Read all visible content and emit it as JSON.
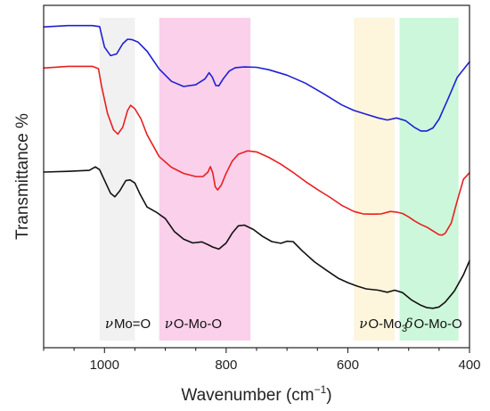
{
  "chart_data": {
    "type": "line",
    "xlabel": "Wavenumber (cm",
    "xlabel_sup": "−1",
    "xlabel_end": ")",
    "ylabel": "Transmittance %",
    "xlim": [
      1100,
      400
    ],
    "x_reversed": true,
    "ylim": [
      0,
      1
    ],
    "y_ticks_shown": false,
    "x_ticks": [
      1000,
      800,
      600,
      400
    ],
    "x_tick_labels": [
      "1000",
      "800",
      "600",
      "400"
    ],
    "bands": [
      {
        "from": 1008,
        "to": 950,
        "color": "#eeeeee",
        "label_symbol": "ν",
        "label_text": "Mo=O",
        "label_sub": ""
      },
      {
        "from": 910,
        "to": 760,
        "color": "#f9c8e8",
        "label_symbol": "ν",
        "label_text": "O-Mo-O",
        "label_sub": ""
      },
      {
        "from": 590,
        "to": 523,
        "color": "#fdf3d6",
        "label_symbol": "ν",
        "label_text": "O-Mo",
        "label_sub": "3"
      },
      {
        "from": 515,
        "to": 418,
        "color": "#c4f6d4",
        "label_symbol": "δ",
        "label_text": "O-Mo-O",
        "label_sub": ""
      }
    ],
    "series": [
      {
        "color": "#1f1fd6",
        "points": [
          [
            1100,
            0.937
          ],
          [
            1060,
            0.941
          ],
          [
            1020,
            0.941
          ],
          [
            1008,
            0.938
          ],
          [
            1000,
            0.878
          ],
          [
            990,
            0.853
          ],
          [
            980,
            0.858
          ],
          [
            970,
            0.888
          ],
          [
            962,
            0.901
          ],
          [
            955,
            0.9
          ],
          [
            945,
            0.893
          ],
          [
            930,
            0.866
          ],
          [
            910,
            0.814
          ],
          [
            890,
            0.778
          ],
          [
            870,
            0.763
          ],
          [
            850,
            0.768
          ],
          [
            835,
            0.785
          ],
          [
            828,
            0.803
          ],
          [
            823,
            0.791
          ],
          [
            817,
            0.766
          ],
          [
            812,
            0.765
          ],
          [
            805,
            0.785
          ],
          [
            795,
            0.808
          ],
          [
            785,
            0.818
          ],
          [
            770,
            0.82
          ],
          [
            750,
            0.819
          ],
          [
            730,
            0.812
          ],
          [
            700,
            0.796
          ],
          [
            670,
            0.773
          ],
          [
            640,
            0.742
          ],
          [
            610,
            0.709
          ],
          [
            590,
            0.693
          ],
          [
            570,
            0.682
          ],
          [
            550,
            0.671
          ],
          [
            535,
            0.665
          ],
          [
            520,
            0.671
          ],
          [
            505,
            0.663
          ],
          [
            490,
            0.643
          ],
          [
            480,
            0.633
          ],
          [
            470,
            0.633
          ],
          [
            460,
            0.642
          ],
          [
            450,
            0.668
          ],
          [
            435,
            0.728
          ],
          [
            420,
            0.79
          ],
          [
            400,
            0.835
          ]
        ]
      },
      {
        "color": "#e82020",
        "points": [
          [
            1100,
            0.817
          ],
          [
            1060,
            0.822
          ],
          [
            1020,
            0.822
          ],
          [
            1010,
            0.815
          ],
          [
            1005,
            0.765
          ],
          [
            995,
            0.684
          ],
          [
            985,
            0.636
          ],
          [
            978,
            0.624
          ],
          [
            970,
            0.644
          ],
          [
            962,
            0.693
          ],
          [
            957,
            0.708
          ],
          [
            950,
            0.698
          ],
          [
            940,
            0.668
          ],
          [
            930,
            0.622
          ],
          [
            910,
            0.558
          ],
          [
            890,
            0.527
          ],
          [
            870,
            0.509
          ],
          [
            850,
            0.5
          ],
          [
            838,
            0.5
          ],
          [
            830,
            0.513
          ],
          [
            826,
            0.529
          ],
          [
            822,
            0.511
          ],
          [
            818,
            0.47
          ],
          [
            814,
            0.461
          ],
          [
            808,
            0.475
          ],
          [
            800,
            0.51
          ],
          [
            790,
            0.545
          ],
          [
            780,
            0.565
          ],
          [
            765,
            0.575
          ],
          [
            750,
            0.572
          ],
          [
            730,
            0.556
          ],
          [
            710,
            0.536
          ],
          [
            690,
            0.512
          ],
          [
            670,
            0.486
          ],
          [
            650,
            0.462
          ],
          [
            630,
            0.44
          ],
          [
            610,
            0.416
          ],
          [
            590,
            0.398
          ],
          [
            575,
            0.391
          ],
          [
            560,
            0.39
          ],
          [
            545,
            0.391
          ],
          [
            530,
            0.398
          ],
          [
            520,
            0.396
          ],
          [
            510,
            0.392
          ],
          [
            500,
            0.382
          ],
          [
            490,
            0.37
          ],
          [
            480,
            0.36
          ],
          [
            470,
            0.352
          ],
          [
            460,
            0.341
          ],
          [
            450,
            0.33
          ],
          [
            445,
            0.329
          ],
          [
            440,
            0.334
          ],
          [
            430,
            0.364
          ],
          [
            420,
            0.43
          ],
          [
            410,
            0.492
          ],
          [
            400,
            0.511
          ]
        ]
      },
      {
        "color": "#111111",
        "points": [
          [
            1100,
            0.513
          ],
          [
            1060,
            0.515
          ],
          [
            1025,
            0.518
          ],
          [
            1015,
            0.528
          ],
          [
            1008,
            0.52
          ],
          [
            1000,
            0.489
          ],
          [
            990,
            0.451
          ],
          [
            983,
            0.441
          ],
          [
            975,
            0.458
          ],
          [
            965,
            0.488
          ],
          [
            958,
            0.49
          ],
          [
            950,
            0.481
          ],
          [
            942,
            0.45
          ],
          [
            930,
            0.411
          ],
          [
            915,
            0.396
          ],
          [
            900,
            0.377
          ],
          [
            885,
            0.339
          ],
          [
            870,
            0.317
          ],
          [
            855,
            0.306
          ],
          [
            840,
            0.309
          ],
          [
            830,
            0.301
          ],
          [
            822,
            0.294
          ],
          [
            812,
            0.288
          ],
          [
            800,
            0.306
          ],
          [
            790,
            0.335
          ],
          [
            780,
            0.356
          ],
          [
            770,
            0.358
          ],
          [
            755,
            0.345
          ],
          [
            740,
            0.325
          ],
          [
            725,
            0.31
          ],
          [
            710,
            0.305
          ],
          [
            700,
            0.311
          ],
          [
            690,
            0.31
          ],
          [
            675,
            0.283
          ],
          [
            655,
            0.251
          ],
          [
            635,
            0.226
          ],
          [
            615,
            0.202
          ],
          [
            600,
            0.19
          ],
          [
            585,
            0.18
          ],
          [
            570,
            0.172
          ],
          [
            550,
            0.168
          ],
          [
            535,
            0.162
          ],
          [
            523,
            0.168
          ],
          [
            510,
            0.161
          ],
          [
            495,
            0.139
          ],
          [
            480,
            0.124
          ],
          [
            470,
            0.117
          ],
          [
            460,
            0.115
          ],
          [
            450,
            0.119
          ],
          [
            440,
            0.133
          ],
          [
            425,
            0.165
          ],
          [
            410,
            0.213
          ],
          [
            400,
            0.254
          ]
        ]
      }
    ]
  }
}
